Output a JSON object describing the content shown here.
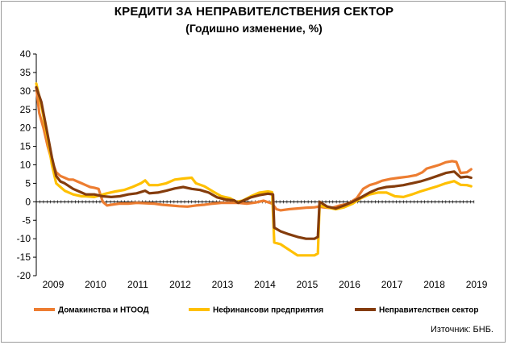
{
  "header": {
    "title": "КРЕДИТИ ЗА НЕПРАВИТЕЛСТВЕНИЯ СЕКТОР",
    "subtitle": "(Годишно изменение, %)"
  },
  "source": "Източник: БНБ.",
  "chart_data": {
    "type": "line",
    "title": "КРЕДИТИ ЗА НЕПРАВИТЕЛСТВЕНИЯ СЕКТОР",
    "subtitle": "(Годишно изменение, %)",
    "ylim": [
      -20,
      40
    ],
    "yticks": [
      -20,
      -15,
      -10,
      -5,
      0,
      5,
      10,
      15,
      20,
      25,
      30,
      35,
      40
    ],
    "xlim": [
      2008.83,
      2019.17
    ],
    "xticks": [
      {
        "label": "2009",
        "value": 2009.0
      },
      {
        "label": "2010",
        "value": 2010.0
      },
      {
        "label": "2011",
        "value": 2011.0
      },
      {
        "label": "2012",
        "value": 2012.0
      },
      {
        "label": "2013",
        "value": 2013.0
      },
      {
        "label": "2014",
        "value": 2014.0
      },
      {
        "label": "2015",
        "value": 2015.0
      },
      {
        "label": "2016",
        "value": 2016.0
      },
      {
        "label": "2017",
        "value": 2017.0
      },
      {
        "label": "2018",
        "value": 2018.0
      },
      {
        "label": "2019",
        "value": 2019.0
      }
    ],
    "grid": false,
    "legend_position": "bottom",
    "series": [
      {
        "name": "Домакинства и НТООД",
        "color": "#ED7D31",
        "points": [
          [
            2008.83,
            31
          ],
          [
            2008.9,
            24
          ],
          [
            2009.0,
            20
          ],
          [
            2009.1,
            15
          ],
          [
            2009.2,
            11
          ],
          [
            2009.3,
            8
          ],
          [
            2009.4,
            7
          ],
          [
            2009.5,
            6.5
          ],
          [
            2009.6,
            6
          ],
          [
            2009.7,
            6
          ],
          [
            2009.8,
            5.5
          ],
          [
            2009.9,
            5
          ],
          [
            2010.0,
            4.5
          ],
          [
            2010.1,
            4
          ],
          [
            2010.2,
            3.8
          ],
          [
            2010.3,
            3.5
          ],
          [
            2010.4,
            0
          ],
          [
            2010.5,
            -1
          ],
          [
            2010.6,
            -0.8
          ],
          [
            2010.8,
            -0.5
          ],
          [
            2011.0,
            -0.5
          ],
          [
            2011.2,
            -0.3
          ],
          [
            2011.4,
            -0.4
          ],
          [
            2011.6,
            -0.5
          ],
          [
            2011.8,
            -0.8
          ],
          [
            2012.0,
            -1
          ],
          [
            2012.2,
            -1.2
          ],
          [
            2012.4,
            -1.3
          ],
          [
            2012.6,
            -1
          ],
          [
            2012.8,
            -0.8
          ],
          [
            2013.0,
            -0.5
          ],
          [
            2013.2,
            -0.3
          ],
          [
            2013.4,
            -0.3
          ],
          [
            2013.6,
            -0.3
          ],
          [
            2013.8,
            -0.5
          ],
          [
            2014.0,
            -0.2
          ],
          [
            2014.2,
            0.3
          ],
          [
            2014.4,
            -0.5
          ],
          [
            2014.5,
            -2
          ],
          [
            2014.6,
            -2.3
          ],
          [
            2014.8,
            -2
          ],
          [
            2015.0,
            -1.8
          ],
          [
            2015.2,
            -1.6
          ],
          [
            2015.4,
            -1.5
          ],
          [
            2015.5,
            -1.3
          ],
          [
            2015.6,
            -1.5
          ],
          [
            2015.8,
            -1.7
          ],
          [
            2016.0,
            -1
          ],
          [
            2016.2,
            -0.5
          ],
          [
            2016.4,
            1
          ],
          [
            2016.55,
            3.5
          ],
          [
            2016.7,
            4.5
          ],
          [
            2016.85,
            5
          ],
          [
            2017.0,
            5.7
          ],
          [
            2017.2,
            6.2
          ],
          [
            2017.4,
            6.5
          ],
          [
            2017.6,
            6.8
          ],
          [
            2017.8,
            7.2
          ],
          [
            2017.95,
            8
          ],
          [
            2018.05,
            9
          ],
          [
            2018.2,
            9.5
          ],
          [
            2018.35,
            10
          ],
          [
            2018.5,
            10.7
          ],
          [
            2018.65,
            11
          ],
          [
            2018.75,
            10.8
          ],
          [
            2018.85,
            7.8
          ],
          [
            2019.0,
            8.0
          ],
          [
            2019.1,
            8.8
          ]
        ]
      },
      {
        "name": "Нефинансови предприятия",
        "color": "#FFC000",
        "points": [
          [
            2008.83,
            32
          ],
          [
            2008.95,
            26
          ],
          [
            2009.1,
            17
          ],
          [
            2009.2,
            10
          ],
          [
            2009.3,
            5
          ],
          [
            2009.4,
            4
          ],
          [
            2009.5,
            3
          ],
          [
            2009.7,
            2
          ],
          [
            2009.9,
            1.5
          ],
          [
            2010.0,
            1.5
          ],
          [
            2010.2,
            1.3
          ],
          [
            2010.35,
            1.8
          ],
          [
            2010.5,
            2.3
          ],
          [
            2010.7,
            2.8
          ],
          [
            2010.9,
            3.2
          ],
          [
            2011.1,
            4
          ],
          [
            2011.3,
            5
          ],
          [
            2011.4,
            5.8
          ],
          [
            2011.5,
            4.5
          ],
          [
            2011.7,
            4.5
          ],
          [
            2011.9,
            5
          ],
          [
            2012.1,
            6
          ],
          [
            2012.3,
            6.3
          ],
          [
            2012.5,
            6.5
          ],
          [
            2012.6,
            5
          ],
          [
            2012.8,
            4.2
          ],
          [
            2013.0,
            2.8
          ],
          [
            2013.2,
            1.5
          ],
          [
            2013.4,
            1.0
          ],
          [
            2013.55,
            0
          ],
          [
            2013.7,
            0.3
          ],
          [
            2013.9,
            1.5
          ],
          [
            2014.1,
            2.5
          ],
          [
            2014.3,
            2.8
          ],
          [
            2014.4,
            2.6
          ],
          [
            2014.45,
            -11
          ],
          [
            2014.6,
            -11.5
          ],
          [
            2014.8,
            -13
          ],
          [
            2015.0,
            -14.5
          ],
          [
            2015.2,
            -14.5
          ],
          [
            2015.4,
            -14.5
          ],
          [
            2015.48,
            -14
          ],
          [
            2015.52,
            -1
          ],
          [
            2015.7,
            -1.5
          ],
          [
            2015.9,
            -2
          ],
          [
            2016.1,
            -1.5
          ],
          [
            2016.3,
            -0.5
          ],
          [
            2016.5,
            1
          ],
          [
            2016.7,
            2
          ],
          [
            2016.9,
            2.5
          ],
          [
            2017.1,
            2.5
          ],
          [
            2017.3,
            1.5
          ],
          [
            2017.5,
            1.3
          ],
          [
            2017.7,
            2
          ],
          [
            2017.9,
            2.8
          ],
          [
            2018.1,
            3.5
          ],
          [
            2018.3,
            4.2
          ],
          [
            2018.5,
            5
          ],
          [
            2018.7,
            5.6
          ],
          [
            2018.85,
            4.6
          ],
          [
            2019.0,
            4.5
          ],
          [
            2019.1,
            4.2
          ]
        ]
      },
      {
        "name": "Неправителствен сектор",
        "color": "#843C0C",
        "points": [
          [
            2008.83,
            31
          ],
          [
            2008.95,
            27
          ],
          [
            2009.1,
            18
          ],
          [
            2009.2,
            12
          ],
          [
            2009.3,
            7
          ],
          [
            2009.4,
            5.5
          ],
          [
            2009.5,
            5
          ],
          [
            2009.7,
            3.5
          ],
          [
            2009.9,
            2.5
          ],
          [
            2010.0,
            2
          ],
          [
            2010.2,
            2
          ],
          [
            2010.4,
            1.5
          ],
          [
            2010.6,
            1.3
          ],
          [
            2010.8,
            1.5
          ],
          [
            2011.0,
            2
          ],
          [
            2011.2,
            2.3
          ],
          [
            2011.4,
            3
          ],
          [
            2011.5,
            2.3
          ],
          [
            2011.7,
            2.5
          ],
          [
            2011.9,
            3
          ],
          [
            2012.1,
            3.6
          ],
          [
            2012.3,
            4
          ],
          [
            2012.5,
            3.5
          ],
          [
            2012.7,
            3.2
          ],
          [
            2012.9,
            2.5
          ],
          [
            2013.1,
            1.2
          ],
          [
            2013.3,
            0.6
          ],
          [
            2013.5,
            0.4
          ],
          [
            2013.6,
            -0.3
          ],
          [
            2013.7,
            0.2
          ],
          [
            2013.9,
            1.2
          ],
          [
            2014.1,
            1.8
          ],
          [
            2014.3,
            2.2
          ],
          [
            2014.42,
            2.0
          ],
          [
            2014.45,
            -7
          ],
          [
            2014.6,
            -8
          ],
          [
            2014.8,
            -8.8
          ],
          [
            2015.0,
            -9.5
          ],
          [
            2015.2,
            -10
          ],
          [
            2015.4,
            -10
          ],
          [
            2015.48,
            -9.5
          ],
          [
            2015.52,
            0
          ],
          [
            2015.7,
            -1.3
          ],
          [
            2015.9,
            -1.8
          ],
          [
            2016.1,
            -1
          ],
          [
            2016.3,
            0
          ],
          [
            2016.5,
            1.2
          ],
          [
            2016.7,
            2.5
          ],
          [
            2016.9,
            3.5
          ],
          [
            2017.1,
            4
          ],
          [
            2017.3,
            4.2
          ],
          [
            2017.5,
            4.5
          ],
          [
            2017.7,
            5
          ],
          [
            2017.9,
            5.5
          ],
          [
            2018.1,
            6.2
          ],
          [
            2018.3,
            7
          ],
          [
            2018.5,
            7.8
          ],
          [
            2018.7,
            8.2
          ],
          [
            2018.85,
            6.6
          ],
          [
            2019.0,
            6.8
          ],
          [
            2019.1,
            6.5
          ]
        ]
      }
    ]
  }
}
